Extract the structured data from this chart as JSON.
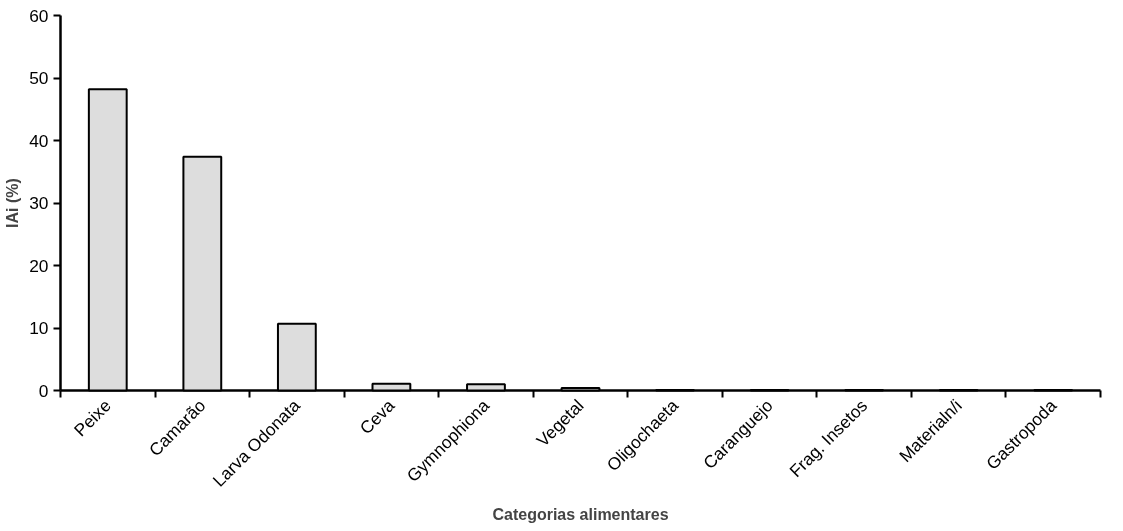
{
  "chart_data": {
    "type": "bar",
    "xlabel": "Categorias alimentares",
    "ylabel": "IAi (%)",
    "categories": [
      "Peixe",
      "Camarão",
      "Larva Odonata",
      "Ceva",
      "Gymnophiona",
      "Vegetal",
      "Oligochaeta",
      "Caranguejo",
      "Frag. Insetos",
      "Materialn/i",
      "Gastropoda"
    ],
    "values": [
      48.2,
      37.4,
      10.7,
      1.1,
      1.0,
      0.4,
      0.1,
      0.1,
      0.1,
      0.1,
      0.1
    ],
    "color": "#dddddd",
    "ylim": [
      0,
      60
    ],
    "yticks": [
      0,
      10,
      20,
      30,
      40,
      50,
      60
    ],
    "grid": false
  }
}
